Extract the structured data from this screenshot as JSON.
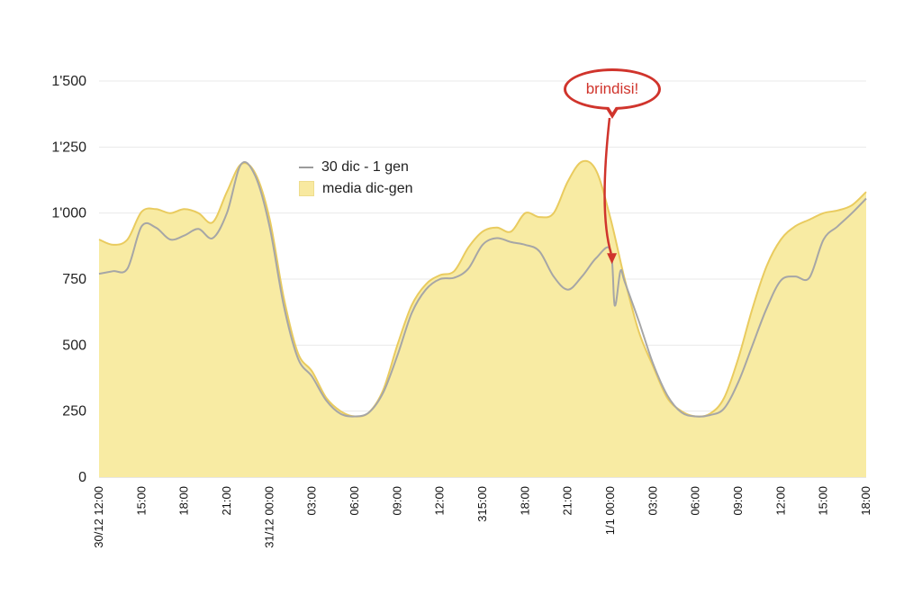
{
  "chart_data": {
    "type": "line+area",
    "title": "",
    "xlabel": "",
    "ylabel": "",
    "ylim": [
      0,
      1500
    ],
    "grid": "horizontal",
    "legend_position": "upper-left-inside",
    "y_axis": {
      "ticks": [
        {
          "value": 0,
          "label": "0"
        },
        {
          "value": 250,
          "label": "250"
        },
        {
          "value": 500,
          "label": "500"
        },
        {
          "value": 750,
          "label": "750"
        },
        {
          "value": 1000,
          "label": "1'000"
        },
        {
          "value": 1250,
          "label": "1'250"
        },
        {
          "value": 1500,
          "label": "1'500"
        }
      ]
    },
    "x_axis": {
      "unit": "hours from 30/12 12:00, labels every 3h, rotated vertical",
      "range_hours": [
        0,
        54
      ],
      "ticks": [
        {
          "hour": 0,
          "label": "30/12 12:00"
        },
        {
          "hour": 3,
          "label": "15:00"
        },
        {
          "hour": 6,
          "label": "18:00"
        },
        {
          "hour": 9,
          "label": "21:00"
        },
        {
          "hour": 12,
          "label": "31/12 00:00"
        },
        {
          "hour": 15,
          "label": "03:00"
        },
        {
          "hour": 18,
          "label": "06:00"
        },
        {
          "hour": 21,
          "label": "09:00"
        },
        {
          "hour": 24,
          "label": "12:00"
        },
        {
          "hour": 27,
          "label": "315:00"
        },
        {
          "hour": 30,
          "label": "18:00"
        },
        {
          "hour": 33,
          "label": "21:00"
        },
        {
          "hour": 36,
          "label": "1/1 00:00"
        },
        {
          "hour": 39,
          "label": "03:00"
        },
        {
          "hour": 42,
          "label": "06:00"
        },
        {
          "hour": 45,
          "label": "09:00"
        },
        {
          "hour": 48,
          "label": "12:00"
        },
        {
          "hour": 51,
          "label": "15:00"
        },
        {
          "hour": 54,
          "label": "18:00"
        }
      ]
    },
    "series": [
      {
        "name": "30 dic - 1 gen",
        "type": "line",
        "color": "#a6a6a6",
        "points": [
          [
            0,
            770
          ],
          [
            1,
            780
          ],
          [
            2,
            790
          ],
          [
            3,
            950
          ],
          [
            4,
            945
          ],
          [
            5,
            900
          ],
          [
            6,
            915
          ],
          [
            7,
            940
          ],
          [
            8,
            905
          ],
          [
            9,
            1000
          ],
          [
            10,
            1185
          ],
          [
            11,
            1140
          ],
          [
            12,
            950
          ],
          [
            13,
            650
          ],
          [
            14,
            450
          ],
          [
            15,
            380
          ],
          [
            16,
            290
          ],
          [
            17,
            240
          ],
          [
            18,
            230
          ],
          [
            19,
            245
          ],
          [
            20,
            320
          ],
          [
            21,
            460
          ],
          [
            22,
            620
          ],
          [
            23,
            710
          ],
          [
            24,
            750
          ],
          [
            25,
            755
          ],
          [
            26,
            790
          ],
          [
            27,
            880
          ],
          [
            28,
            905
          ],
          [
            29,
            890
          ],
          [
            30,
            880
          ],
          [
            31,
            855
          ],
          [
            32,
            760
          ],
          [
            33,
            710
          ],
          [
            34,
            760
          ],
          [
            35,
            830
          ],
          [
            36,
            860
          ],
          [
            36.3,
            650
          ],
          [
            36.7,
            780
          ],
          [
            37,
            740
          ],
          [
            38,
            590
          ],
          [
            39,
            430
          ],
          [
            40,
            310
          ],
          [
            41,
            245
          ],
          [
            42,
            230
          ],
          [
            43,
            235
          ],
          [
            44,
            260
          ],
          [
            45,
            360
          ],
          [
            46,
            500
          ],
          [
            47,
            640
          ],
          [
            48,
            745
          ],
          [
            49,
            760
          ],
          [
            50,
            755
          ],
          [
            51,
            900
          ],
          [
            52,
            950
          ],
          [
            53,
            1000
          ],
          [
            54,
            1055
          ]
        ]
      },
      {
        "name": "media dic-gen",
        "type": "area",
        "fill": "#f8eba3",
        "stroke": "#e9cb5f",
        "points": [
          [
            0,
            900
          ],
          [
            1,
            880
          ],
          [
            2,
            900
          ],
          [
            3,
            1005
          ],
          [
            4,
            1015
          ],
          [
            5,
            1000
          ],
          [
            6,
            1015
          ],
          [
            7,
            1000
          ],
          [
            8,
            965
          ],
          [
            9,
            1080
          ],
          [
            10,
            1185
          ],
          [
            11,
            1150
          ],
          [
            12,
            980
          ],
          [
            13,
            680
          ],
          [
            14,
            470
          ],
          [
            15,
            400
          ],
          [
            16,
            300
          ],
          [
            17,
            250
          ],
          [
            18,
            230
          ],
          [
            19,
            245
          ],
          [
            20,
            330
          ],
          [
            21,
            500
          ],
          [
            22,
            650
          ],
          [
            23,
            730
          ],
          [
            24,
            765
          ],
          [
            25,
            780
          ],
          [
            26,
            870
          ],
          [
            27,
            930
          ],
          [
            28,
            945
          ],
          [
            29,
            930
          ],
          [
            30,
            1000
          ],
          [
            31,
            985
          ],
          [
            32,
            1000
          ],
          [
            33,
            1120
          ],
          [
            34,
            1195
          ],
          [
            35,
            1160
          ],
          [
            36,
            980
          ],
          [
            37,
            750
          ],
          [
            38,
            550
          ],
          [
            39,
            420
          ],
          [
            40,
            300
          ],
          [
            41,
            250
          ],
          [
            42,
            230
          ],
          [
            43,
            240
          ],
          [
            44,
            300
          ],
          [
            45,
            450
          ],
          [
            46,
            640
          ],
          [
            47,
            800
          ],
          [
            48,
            900
          ],
          [
            49,
            950
          ],
          [
            50,
            975
          ],
          [
            51,
            1000
          ],
          [
            52,
            1010
          ],
          [
            53,
            1030
          ],
          [
            54,
            1080
          ]
        ]
      }
    ],
    "annotation": {
      "text": "brindisi!",
      "color": "#d0342c",
      "target_hour": 36.1,
      "target_value": 800
    }
  }
}
